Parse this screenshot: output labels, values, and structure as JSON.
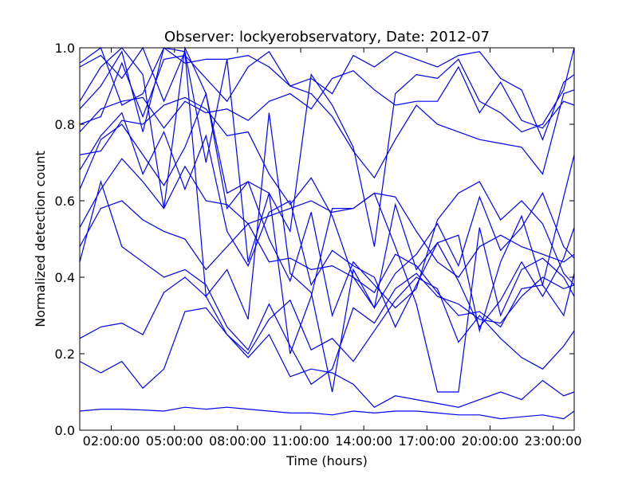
{
  "chart_data": {
    "type": "line",
    "title": "Observer: lockyerobservatory, Date: 2012-07",
    "xlabel": "Time (hours)",
    "ylabel": "Normalized detection count",
    "xlim": [
      0.5,
      24
    ],
    "ylim": [
      0.0,
      1.0
    ],
    "x_ticks": [
      {
        "value": 2,
        "label": "02:00:00"
      },
      {
        "value": 5,
        "label": "05:00:00"
      },
      {
        "value": 8,
        "label": "08:00:00"
      },
      {
        "value": 11,
        "label": "11:00:00"
      },
      {
        "value": 14,
        "label": "14:00:00"
      },
      {
        "value": 17,
        "label": "17:00:00"
      },
      {
        "value": 20,
        "label": "20:00:00"
      },
      {
        "value": 23,
        "label": "23:00:00"
      }
    ],
    "y_ticks": [
      {
        "value": 0.0,
        "label": "0.0"
      },
      {
        "value": 0.2,
        "label": "0.2"
      },
      {
        "value": 0.4,
        "label": "0.4"
      },
      {
        "value": 0.6,
        "label": "0.6"
      },
      {
        "value": 0.8,
        "label": "0.8"
      },
      {
        "value": 1.0,
        "label": "1.0"
      }
    ],
    "grid": false,
    "line_color": "#0000ff",
    "x": [
      0.5,
      1.5,
      2.5,
      3.5,
      4.5,
      5.5,
      6.5,
      7.5,
      8.5,
      9.5,
      10.5,
      11.5,
      12.5,
      13.5,
      14.5,
      15.5,
      16.5,
      17.5,
      18.5,
      19.5,
      20.5,
      21.5,
      22.5,
      23.5,
      24
    ],
    "series": [
      {
        "values": [
          0.05,
          0.055,
          0.055,
          0.053,
          0.05,
          0.06,
          0.055,
          0.06,
          0.055,
          0.05,
          0.045,
          0.045,
          0.04,
          0.05,
          0.045,
          0.05,
          0.05,
          0.045,
          0.04,
          0.04,
          0.03,
          0.035,
          0.04,
          0.03,
          0.05
        ]
      },
      {
        "values": [
          0.18,
          0.15,
          0.18,
          0.11,
          0.16,
          0.31,
          0.32,
          0.25,
          0.19,
          0.25,
          0.14,
          0.16,
          0.15,
          0.12,
          0.06,
          0.09,
          0.08,
          0.07,
          0.06,
          0.08,
          0.1,
          0.08,
          0.13,
          0.09,
          0.1
        ]
      },
      {
        "values": [
          0.24,
          0.27,
          0.28,
          0.25,
          0.36,
          0.4,
          0.35,
          0.25,
          0.2,
          0.29,
          0.34,
          0.21,
          0.24,
          0.18,
          0.26,
          0.34,
          0.4,
          0.37,
          0.23,
          0.3,
          0.24,
          0.19,
          0.16,
          0.22,
          0.26
        ]
      },
      {
        "values": [
          0.44,
          0.65,
          0.48,
          0.44,
          0.4,
          0.42,
          0.38,
          0.27,
          0.21,
          0.33,
          0.22,
          0.12,
          0.16,
          0.32,
          0.28,
          0.37,
          0.41,
          0.35,
          0.33,
          0.29,
          0.28,
          0.35,
          0.4,
          0.37,
          0.38
        ]
      },
      {
        "values": [
          0.48,
          0.58,
          0.6,
          0.55,
          0.52,
          0.5,
          0.42,
          0.48,
          0.54,
          0.44,
          0.45,
          0.42,
          0.43,
          0.4,
          0.36,
          0.46,
          0.43,
          0.36,
          0.3,
          0.31,
          0.27,
          0.37,
          0.38,
          0.3,
          0.41
        ]
      },
      {
        "values": [
          0.53,
          0.63,
          0.71,
          0.65,
          0.58,
          0.69,
          0.6,
          0.59,
          0.54,
          0.56,
          0.58,
          0.6,
          0.57,
          0.58,
          0.62,
          0.61,
          0.52,
          0.44,
          0.4,
          0.48,
          0.51,
          0.48,
          0.46,
          0.44,
          0.46
        ]
      },
      {
        "values": [
          0.63,
          0.76,
          0.8,
          0.72,
          0.64,
          0.74,
          0.88,
          0.62,
          0.65,
          0.5,
          0.39,
          0.57,
          0.3,
          0.44,
          0.38,
          0.32,
          0.37,
          0.55,
          0.62,
          0.65,
          0.55,
          0.6,
          0.54,
          0.41,
          0.38
        ]
      },
      {
        "values": [
          0.68,
          0.77,
          0.83,
          0.67,
          0.78,
          0.63,
          0.77,
          0.52,
          0.43,
          0.57,
          0.6,
          0.38,
          0.47,
          0.43,
          0.4,
          0.27,
          0.38,
          0.49,
          0.39,
          0.27,
          0.34,
          0.44,
          0.35,
          0.45,
          0.53
        ]
      },
      {
        "values": [
          0.72,
          0.73,
          0.81,
          0.8,
          0.85,
          0.87,
          0.84,
          0.77,
          0.78,
          0.67,
          0.59,
          0.66,
          0.56,
          0.4,
          0.32,
          0.41,
          0.46,
          0.54,
          0.43,
          0.61,
          0.47,
          0.53,
          0.62,
          0.48,
          0.45
        ]
      },
      {
        "values": [
          0.78,
          0.84,
          0.86,
          0.87,
          0.79,
          0.86,
          0.83,
          0.84,
          0.81,
          0.86,
          0.88,
          0.84,
          0.92,
          0.94,
          0.89,
          0.85,
          0.86,
          0.86,
          0.95,
          0.83,
          0.91,
          0.81,
          0.79,
          0.86,
          0.85
        ]
      },
      {
        "values": [
          0.8,
          0.82,
          0.96,
          0.82,
          0.97,
          0.98,
          0.92,
          0.86,
          0.95,
          0.99,
          0.9,
          0.92,
          0.88,
          0.98,
          0.95,
          0.99,
          0.97,
          0.95,
          0.98,
          0.99,
          0.92,
          0.89,
          0.76,
          0.91,
          0.93
        ]
      },
      {
        "values": [
          0.84,
          0.9,
          0.99,
          0.78,
          1.0,
          0.96,
          0.97,
          0.97,
          0.98,
          0.95,
          0.9,
          0.88,
          0.82,
          0.73,
          0.66,
          0.76,
          0.85,
          0.8,
          0.78,
          0.76,
          0.75,
          0.74,
          0.67,
          0.88,
          0.89
        ]
      },
      {
        "values": [
          0.86,
          0.95,
          1.0,
          0.93,
          0.58,
          1.0,
          0.88,
          0.58,
          0.65,
          0.62,
          0.2,
          0.35,
          0.58,
          0.58,
          0.62,
          0.48,
          0.33,
          0.1,
          0.1,
          0.53,
          0.3,
          0.42,
          0.45,
          0.4,
          0.35
        ]
      },
      {
        "values": [
          0.95,
          0.98,
          0.92,
          1.0,
          0.86,
          0.99,
          0.7,
          0.97,
          0.44,
          0.62,
          0.52,
          0.93,
          0.85,
          0.74,
          0.48,
          0.88,
          0.93,
          0.92,
          0.97,
          0.86,
          0.83,
          0.78,
          0.8,
          0.89,
          1.0
        ]
      },
      {
        "values": [
          0.96,
          1.0,
          0.85,
          0.88,
          1.0,
          0.99,
          0.35,
          0.42,
          0.29,
          0.83,
          0.41,
          0.36,
          0.1,
          0.42,
          0.32,
          0.59,
          0.42,
          0.49,
          0.51,
          0.26,
          0.44,
          0.56,
          0.38,
          0.61,
          0.72
        ]
      }
    ]
  }
}
